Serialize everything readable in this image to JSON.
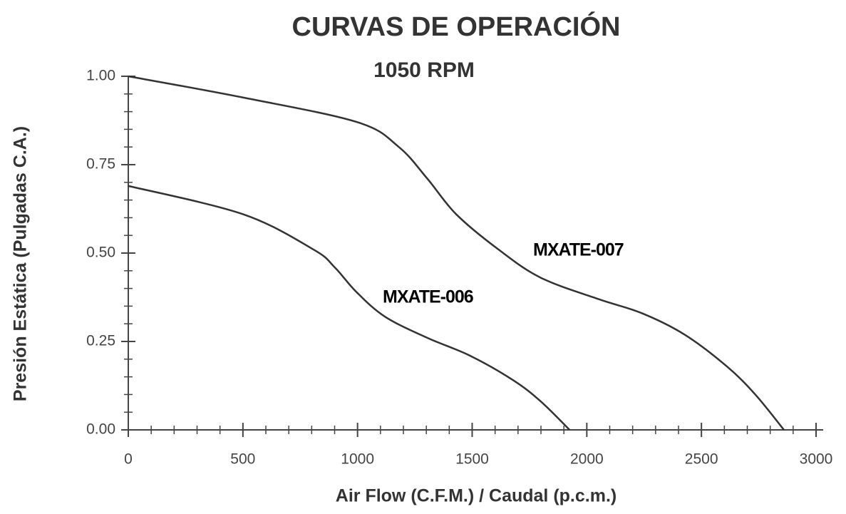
{
  "chart_data": {
    "type": "line",
    "title": "CURVAS DE OPERACIÓN",
    "subtitle": "1050 RPM",
    "x_label": "Air Flow (C.F.M.) / Caudal (p.c.m.)",
    "y_label": "Presión Estática (Pulgadas C.A.)",
    "xlim": [
      0,
      3000
    ],
    "xticks": [
      0,
      500,
      1000,
      1500,
      2000,
      2500,
      3000
    ],
    "ylim": [
      0,
      1
    ],
    "yticks": [
      {
        "value": 0,
        "label": "0.00"
      },
      {
        "value": 0.25,
        "label": "0.25"
      },
      {
        "value": 0.5,
        "label": "0.50"
      },
      {
        "value": 0.75,
        "label": "0.75"
      },
      {
        "value": 1,
        "label": "1.00"
      }
    ],
    "series": [
      {
        "name": "MXATE-007",
        "color": "#333333",
        "x": [
          0,
          500,
          1000,
          1180,
          1305,
          1430,
          1615,
          1800,
          2050,
          2240,
          2425,
          2610,
          2735,
          2860
        ],
        "values": [
          1.0,
          0.94,
          0.87,
          0.8,
          0.71,
          0.61,
          0.51,
          0.43,
          0.37,
          0.33,
          0.27,
          0.18,
          0.1,
          0
        ]
      },
      {
        "name": "MXATE-006",
        "color": "#333333",
        "x": [
          0,
          500,
          808,
          900,
          995,
          1120,
          1305,
          1490,
          1680,
          1800,
          1925
        ],
        "values": [
          0.69,
          0.61,
          0.51,
          0.46,
          0.39,
          0.32,
          0.26,
          0.21,
          0.14,
          0.08,
          0
        ]
      }
    ]
  }
}
